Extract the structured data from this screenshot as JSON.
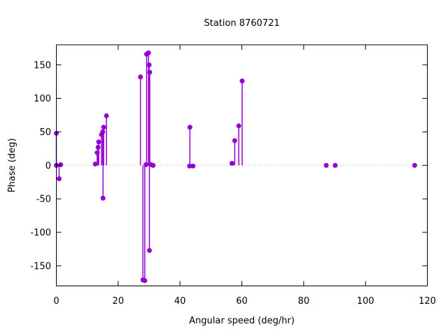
{
  "chart_data": {
    "type": "scatter",
    "style": "impulses+points",
    "title": "Station 8760721",
    "xlabel": "Angular speed (deg/hr)",
    "ylabel": "Phase (deg)",
    "xlim": [
      0,
      120
    ],
    "ylim": [
      -180,
      180
    ],
    "xticks": [
      0,
      20,
      40,
      60,
      80,
      100,
      120
    ],
    "yticks": [
      -150,
      -100,
      -50,
      0,
      50,
      100,
      150
    ],
    "grid": false,
    "legend": "none",
    "zero_line": true,
    "colors": {
      "series": "#9400d3",
      "axis": "#000000",
      "zero_line": "#b0b0b0",
      "background": "#ffffff"
    },
    "series": [
      {
        "name": "phase",
        "color": "#9400d3",
        "points": [
          [
            0,
            48
          ],
          [
            0,
            0
          ],
          [
            1.4,
            1
          ],
          [
            0.9,
            -20
          ],
          [
            12.6,
            2
          ],
          [
            13.2,
            19
          ],
          [
            13.5,
            27
          ],
          [
            13.7,
            35
          ],
          [
            14.6,
            46
          ],
          [
            15.0,
            50
          ],
          [
            15.3,
            57
          ],
          [
            16.2,
            74
          ],
          [
            15.1,
            -49
          ],
          [
            27.2,
            132
          ],
          [
            28.0,
            -171
          ],
          [
            28.6,
            -172
          ],
          [
            29.2,
            166
          ],
          [
            29.8,
            168
          ],
          [
            30.0,
            150
          ],
          [
            30.2,
            139
          ],
          [
            30.1,
            -127
          ],
          [
            29.0,
            1
          ],
          [
            30.6,
            1
          ],
          [
            31.3,
            0
          ],
          [
            43.2,
            57
          ],
          [
            43.1,
            -1
          ],
          [
            44.2,
            -1
          ],
          [
            56.8,
            3
          ],
          [
            57.7,
            37
          ],
          [
            59.0,
            59
          ],
          [
            60.1,
            126
          ],
          [
            87.3,
            0
          ],
          [
            90.2,
            0
          ],
          [
            115.9,
            0
          ]
        ]
      }
    ]
  }
}
